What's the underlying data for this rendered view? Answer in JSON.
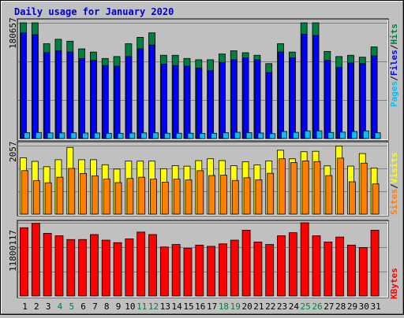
{
  "title": "Daily usage for January 2020",
  "colors": {
    "background": "#c0c0c0",
    "panel": "#c0c0c0",
    "hits": "#008040",
    "files": "#0000ff",
    "pages": "#00c0ff",
    "visits": "#ffff00",
    "sites": "#ff8000",
    "kbytes": "#ff0000",
    "title": "#0000c0",
    "day_normal": "#000000",
    "day_weekend": "#008040"
  },
  "chart_data": [
    {
      "type": "bar",
      "panel": "hits-files-pages",
      "max_label": "180657",
      "legend": {
        "pages": "Pages",
        "files": "Files",
        "hits": "Hits",
        "sep": "/"
      },
      "categories": [
        "1",
        "2",
        "3",
        "4",
        "5",
        "6",
        "7",
        "8",
        "9",
        "10",
        "11",
        "12",
        "13",
        "14",
        "15",
        "16",
        "17",
        "18",
        "19",
        "20",
        "21",
        "22",
        "23",
        "24",
        "25",
        "26",
        "27",
        "28",
        "29",
        "30",
        "31"
      ],
      "ylim": [
        0,
        180657
      ],
      "series": [
        {
          "name": "Hits",
          "values": [
            180657,
            180657,
            148000,
            155000,
            152000,
            140000,
            135000,
            125000,
            128000,
            148000,
            158000,
            165000,
            130000,
            130000,
            125000,
            123000,
            123000,
            132000,
            137000,
            134000,
            130000,
            117000,
            148000,
            135000,
            180657,
            180657,
            136000,
            128000,
            130000,
            127000,
            143000
          ]
        },
        {
          "name": "Files",
          "values": [
            165000,
            162000,
            134000,
            137000,
            135000,
            125000,
            122000,
            114000,
            113000,
            128000,
            140000,
            146000,
            116000,
            114000,
            113000,
            110000,
            106000,
            119000,
            123000,
            126000,
            123000,
            103000,
            135000,
            126000,
            163000,
            161000,
            122000,
            111000,
            118000,
            117000,
            129000
          ]
        },
        {
          "name": "Pages",
          "values": [
            9000,
            9500,
            8800,
            8800,
            8900,
            8600,
            8700,
            8200,
            8200,
            8700,
            8800,
            8900,
            8300,
            8300,
            8300,
            8100,
            8200,
            9000,
            9800,
            9200,
            8600,
            7700,
            11000,
            9700,
            12000,
            12000,
            9500,
            10000,
            11000,
            12000,
            9000
          ]
        }
      ]
    },
    {
      "type": "bar",
      "panel": "visits-sites",
      "max_label": "2057",
      "legend": {
        "sites": "Sites",
        "visits": "Visits",
        "sep": "/"
      },
      "categories": [
        "1",
        "2",
        "3",
        "4",
        "5",
        "6",
        "7",
        "8",
        "9",
        "10",
        "11",
        "12",
        "13",
        "14",
        "15",
        "16",
        "17",
        "18",
        "19",
        "20",
        "21",
        "22",
        "23",
        "24",
        "25",
        "26",
        "27",
        "28",
        "29",
        "30",
        "31"
      ],
      "ylim": [
        0,
        2057
      ],
      "series": [
        {
          "name": "Visits",
          "values": [
            1690,
            1585,
            1423,
            1634,
            2003,
            1634,
            1634,
            1482,
            1352,
            1592,
            1591,
            1592,
            1363,
            1453,
            1439,
            1606,
            1662,
            1608,
            1452,
            1571,
            1477,
            1598,
            1918,
            1661,
            1874,
            1887,
            1448,
            2040,
            1442,
            1818,
            1383
          ]
        },
        {
          "name": "Sites",
          "values": [
            1306,
            1002,
            941,
            1107,
            1372,
            1219,
            1150,
            1050,
            946,
            1070,
            1107,
            1050,
            960,
            1050,
            1025,
            1304,
            1158,
            1170,
            1010,
            1091,
            1031,
            1226,
            1661,
            1546,
            1598,
            1578,
            1156,
            1681,
            970,
            1530,
            906
          ]
        }
      ]
    },
    {
      "type": "bar",
      "panel": "kbytes",
      "max_label": "11800117",
      "legend": {
        "kbytes": "KBytes"
      },
      "categories": [
        "1",
        "2",
        "3",
        "4",
        "5",
        "6",
        "7",
        "8",
        "9",
        "10",
        "11",
        "12",
        "13",
        "14",
        "15",
        "16",
        "17",
        "18",
        "19",
        "20",
        "21",
        "22",
        "23",
        "24",
        "25",
        "26",
        "27",
        "28",
        "29",
        "30",
        "31"
      ],
      "ylim": [
        0,
        11800117
      ],
      "series": [
        {
          "name": "KBytes",
          "values": [
            11000000,
            11700000,
            10100000,
            9700000,
            9100000,
            9100000,
            9900000,
            9000000,
            8600000,
            9200000,
            10300000,
            9900000,
            7900000,
            8300000,
            7700000,
            8200000,
            8000000,
            8400000,
            9000000,
            10600000,
            8700000,
            8300000,
            9700000,
            10200000,
            11800000,
            9700000,
            8700000,
            9500000,
            8200000,
            7800000,
            10600000
          ]
        }
      ]
    }
  ]
}
